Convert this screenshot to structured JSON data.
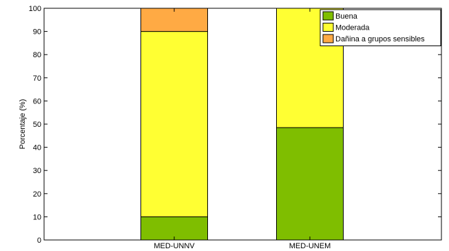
{
  "chart_data": {
    "type": "bar",
    "stacked": true,
    "categories": [
      "MED-UNNV",
      "MED-UNEM"
    ],
    "series": [
      {
        "name": "Buena",
        "values": [
          10,
          48.5
        ],
        "color": "#7fbe00"
      },
      {
        "name": "Moderada",
        "values": [
          80,
          51.5
        ],
        "color": "#ffff33"
      },
      {
        "name": "Dañina a grupos sensibles",
        "values": [
          10,
          0
        ],
        "color": "#ffaa44"
      }
    ],
    "title": "",
    "xlabel": "",
    "ylabel": "Porcentaje (%)",
    "ylim": [
      0,
      100
    ],
    "yticks": [
      0,
      10,
      20,
      30,
      40,
      50,
      60,
      70,
      80,
      90,
      100
    ],
    "grid": false,
    "legend_position": "top-right"
  }
}
